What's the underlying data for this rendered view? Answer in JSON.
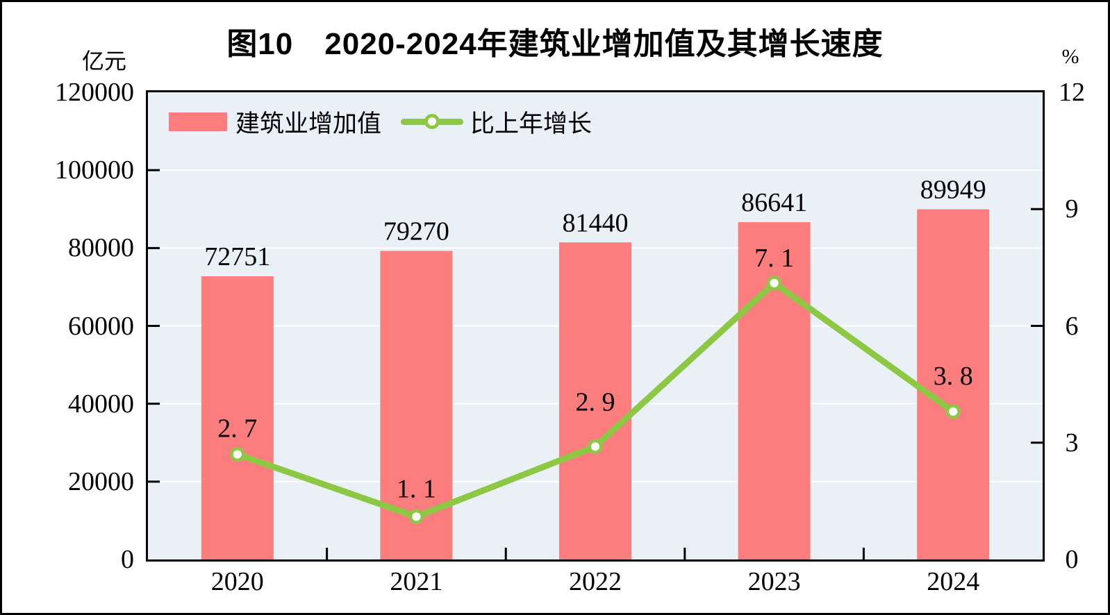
{
  "figure": {
    "title": "图10　2020-2024年建筑业增加值及其增长速度",
    "left_axis_unit": "亿元",
    "right_axis_unit": "%"
  },
  "legend": [
    {
      "label": "建筑业增加值",
      "swatch": "bar",
      "color": "#fb7d7d"
    },
    {
      "label": "比上年增长",
      "swatch": "line",
      "color": "#8cc843"
    }
  ],
  "chart_data": {
    "type": "bar+line",
    "title": "图10　2020-2024年建筑业增加值及其增长速度",
    "categories": [
      "2020",
      "2021",
      "2022",
      "2023",
      "2024"
    ],
    "series": [
      {
        "name": "建筑业增加值",
        "type": "bar",
        "axis": "left",
        "unit": "亿元",
        "color": "#fb7d7d",
        "values": [
          72751,
          79270,
          81440,
          86641,
          89949
        ],
        "data_labels": [
          "72751",
          "79270",
          "81440",
          "86641",
          "89949"
        ]
      },
      {
        "name": "比上年增长",
        "type": "line",
        "axis": "right",
        "unit": "%",
        "color": "#8cc843",
        "marker": "circle-white",
        "values": [
          2.7,
          1.1,
          2.9,
          7.1,
          3.8
        ],
        "data_labels": [
          "2. 7",
          "1. 1",
          "2. 9",
          "7. 1",
          "3. 8"
        ],
        "label_dy": [
          -25,
          -28,
          -52,
          -24,
          -39
        ]
      }
    ],
    "left_axis": {
      "unit": "亿元",
      "min": 0,
      "max": 120000,
      "step": 20000,
      "ticks": [
        "0",
        "20000",
        "40000",
        "60000",
        "80000",
        "100000",
        "120000"
      ]
    },
    "right_axis": {
      "unit": "%",
      "min": 0,
      "max": 12,
      "step": 3,
      "ticks": [
        "0",
        "3",
        "6",
        "9",
        "12"
      ]
    },
    "grid": {
      "horizontal": true,
      "color": "#ffffff"
    },
    "plot_background": "#e9f1f7",
    "axis_color": "#000000",
    "legend_position": "top-left-inside"
  }
}
